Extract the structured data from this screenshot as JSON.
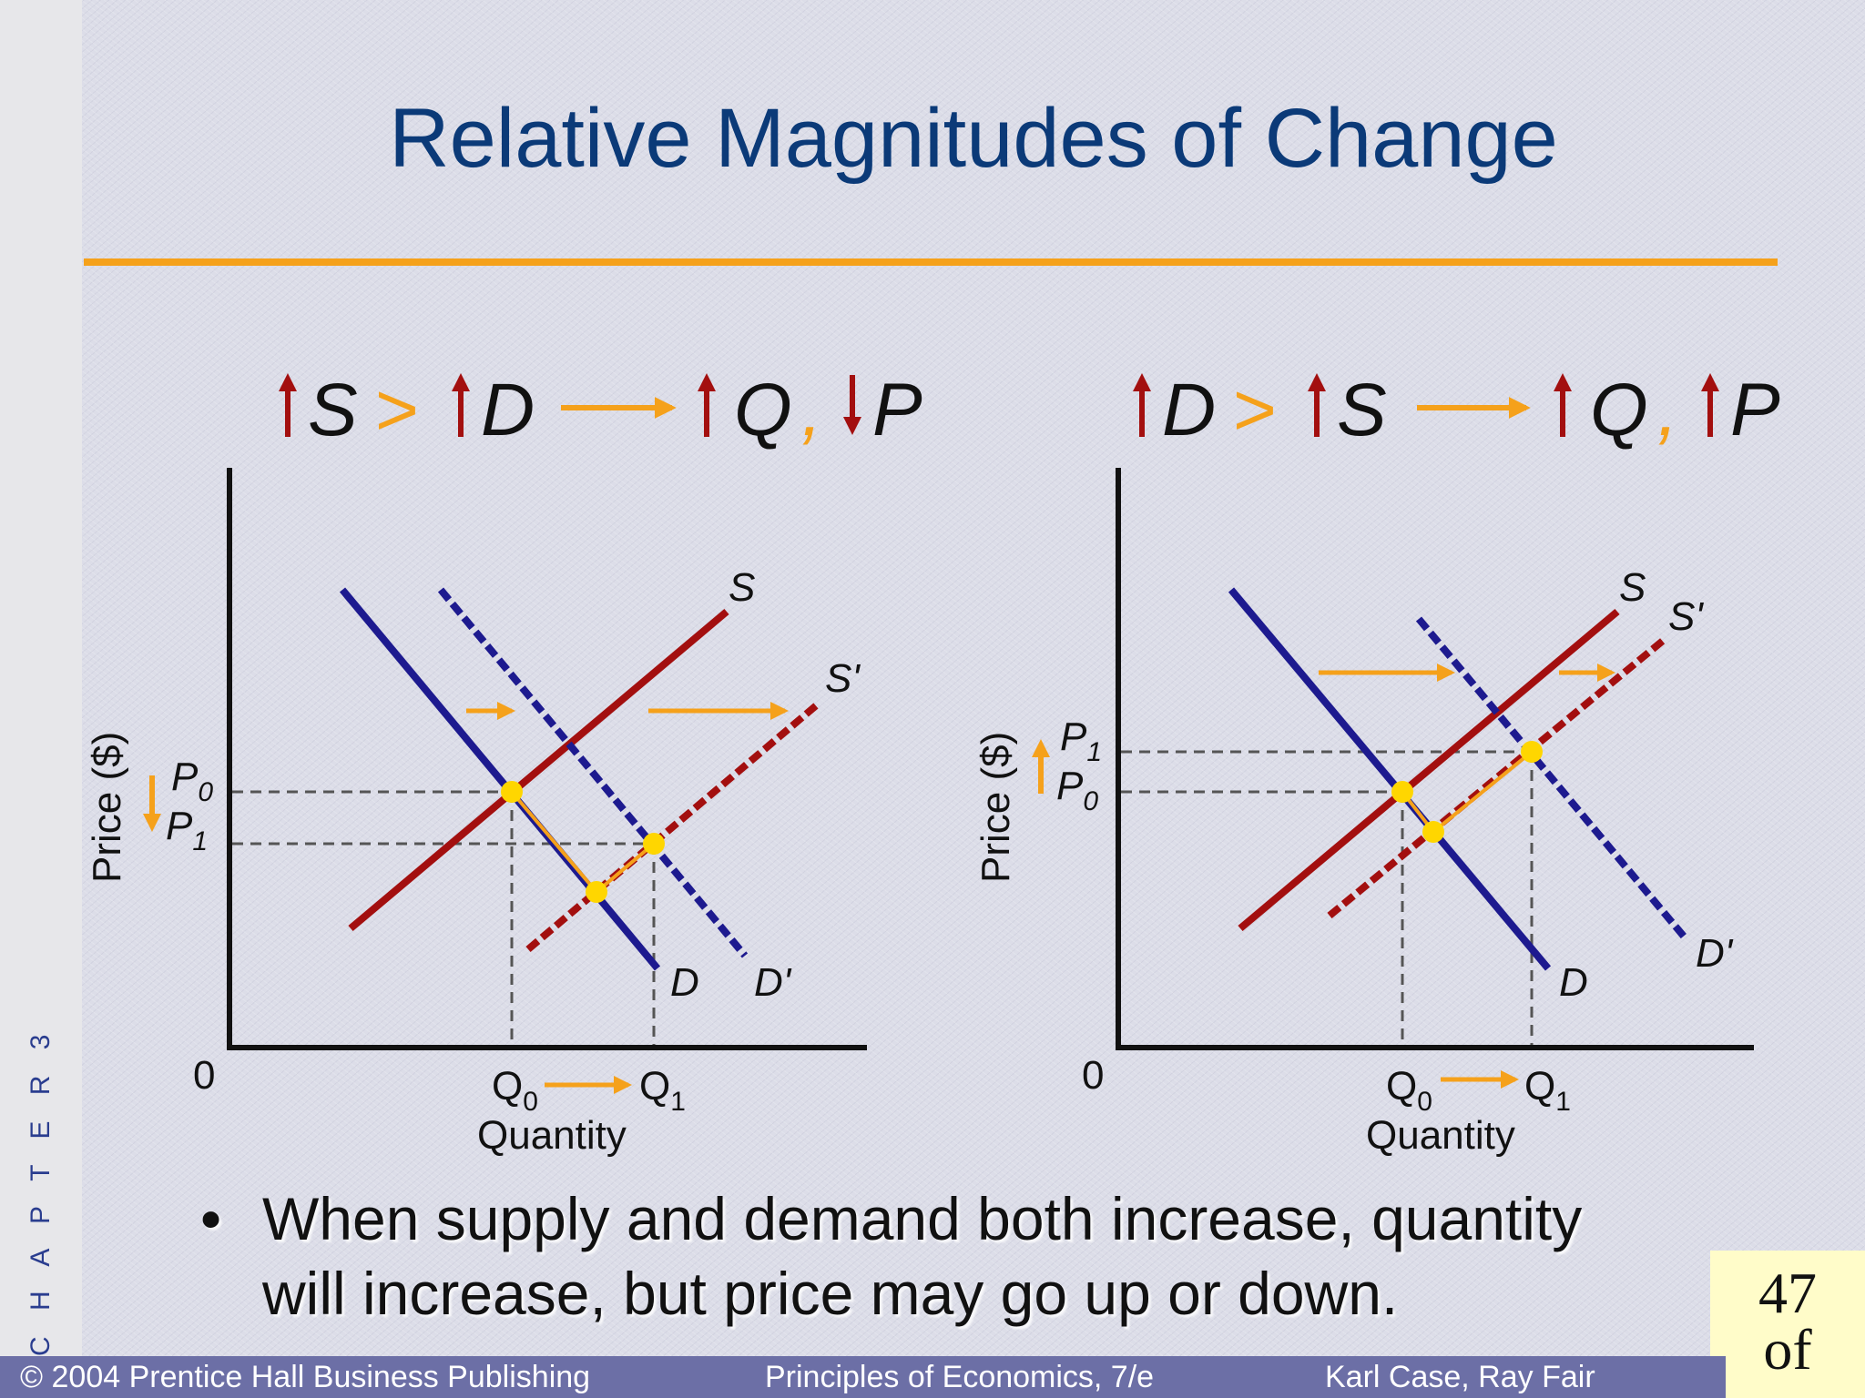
{
  "slide": {
    "title": "Relative Magnitudes of Change",
    "chapter_label": "C H A P T E R 3",
    "bullet_symbol": "•",
    "bullet": "When supply and demand both increase, quantity will increase, but price may go up or down.",
    "page_number": "47 of",
    "footer": {
      "left": "© 2004 Prentice Hall Business Publishing",
      "center": "Principles of Economics, 7/e",
      "right": "Karl Case, Ray Fair"
    }
  },
  "colors": {
    "supply": "#a30f0f",
    "demand": "#1d1a8f",
    "arrow": "#f5a11b",
    "equilibrium": "#ffd600",
    "title": "#0b3a78"
  },
  "diagrams": [
    {
      "heading": {
        "left_change": "S",
        "comparator": ">",
        "right_change": "D",
        "result_q": "Q",
        "separator": ",",
        "result_p": "P",
        "p_direction": "down"
      },
      "labels": {
        "supply": "S",
        "supply_shifted": "S'",
        "demand": "D",
        "demand_shifted": "D'",
        "price_axis": "Price ($)",
        "quantity_axis": "Quantity",
        "origin": "0",
        "p0": "P",
        "p0_sub": "0",
        "p1": "P",
        "p1_sub": "1",
        "q0": "Q",
        "q0_sub": "0",
        "q1": "Q",
        "q1_sub": "1"
      }
    },
    {
      "heading": {
        "left_change": "D",
        "comparator": ">",
        "right_change": "S",
        "result_q": "Q",
        "separator": ",",
        "result_p": "P",
        "p_direction": "up"
      },
      "labels": {
        "supply": "S",
        "supply_shifted": "S'",
        "demand": "D",
        "demand_shifted": "D'",
        "price_axis": "Price ($)",
        "quantity_axis": "Quantity",
        "origin": "0",
        "p0": "P",
        "p0_sub": "0",
        "p1": "P",
        "p1_sub": "1",
        "q0": "Q",
        "q0_sub": "0",
        "q1": "Q",
        "q1_sub": "1"
      }
    }
  ]
}
